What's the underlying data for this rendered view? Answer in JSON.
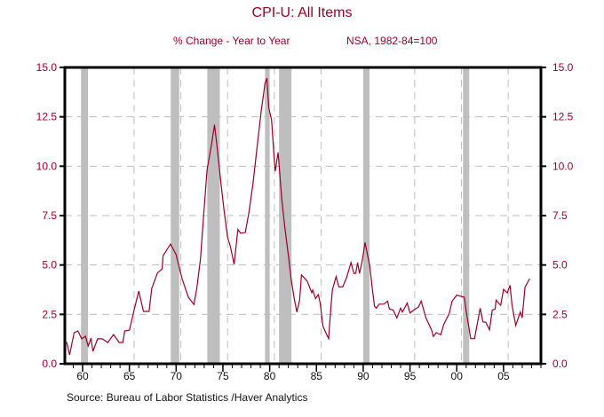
{
  "colors": {
    "accent": "#990026",
    "grid": "#bdbdbd",
    "recession": "#bebebe",
    "axis": "#000000"
  },
  "chart_data": {
    "type": "line",
    "title": "CPI-U: All Items",
    "subtitle_left": "% Change - Year to Year",
    "subtitle_right": "NSA, 1982-84=100",
    "source": "Source:  Bureau of Labor Statistics /Haver Analytics",
    "xlim": [
      1958.6,
      2009.5
    ],
    "ylim": [
      0,
      15
    ],
    "grid": true,
    "y_ticks": [
      "0.0",
      "2.5",
      "5.0",
      "7.5",
      "10.0",
      "12.5",
      "15.0"
    ],
    "x_tick_labels": [
      "60",
      "65",
      "70",
      "75",
      "80",
      "85",
      "90",
      "95",
      "00",
      "05"
    ],
    "x_tick_years": [
      1960,
      1965,
      1970,
      1975,
      1980,
      1985,
      1990,
      1995,
      2000,
      2005
    ],
    "recessions": [
      [
        1960.33,
        1961.08
      ],
      [
        1969.92,
        1970.83
      ],
      [
        1973.83,
        1975.17
      ],
      [
        1980.0,
        1980.5
      ],
      [
        1981.5,
        1982.83
      ],
      [
        1990.5,
        1991.17
      ],
      [
        2001.17,
        2001.83
      ]
    ],
    "series": [
      {
        "x": [
          1958.8,
          1959.1,
          1959.6,
          1960.0,
          1960.4,
          1960.8,
          1961.1,
          1961.4,
          1961.6,
          1962.1,
          1962.6,
          1963.2,
          1963.8,
          1964.4,
          1964.8,
          1965.0,
          1965.5,
          1966.0,
          1966.5,
          1967.0,
          1967.6,
          1967.9,
          1968.5,
          1969.0,
          1969.1,
          1969.9,
          1970.5,
          1971.1,
          1971.8,
          1972.4,
          1972.7,
          1973.1,
          1973.4,
          1973.8,
          1974.3,
          1974.6,
          1974.9,
          1975.3,
          1975.6,
          1976.0,
          1976.3,
          1976.7,
          1977.1,
          1977.4,
          1977.9,
          1978.3,
          1978.7,
          1979.2,
          1979.6,
          1980.0,
          1980.2,
          1980.4,
          1980.7,
          1981.0,
          1981.1,
          1981.4,
          1981.8,
          1982.1,
          1982.5,
          1982.8,
          1983.1,
          1983.4,
          1983.7,
          1983.9,
          1984.5,
          1985.0,
          1985.1,
          1985.4,
          1985.7,
          1985.9,
          1986.2,
          1986.5,
          1986.8,
          1986.9,
          1987.1,
          1987.2,
          1987.6,
          1987.9,
          1988.3,
          1988.7,
          1989.2,
          1989.5,
          1989.7,
          1989.9,
          1990.1,
          1990.4,
          1990.7,
          1991.2,
          1991.5,
          1991.7,
          1991.9,
          1992.2,
          1992.7,
          1993.1,
          1993.3,
          1993.7,
          1994.1,
          1994.5,
          1994.7,
          1995.2,
          1995.5,
          1995.9,
          1996.4,
          1996.7,
          1997.2,
          1997.8,
          1998.0,
          1998.3,
          1998.8,
          1999.1,
          1999.7,
          2000.0,
          2000.5,
          2001.3,
          2001.6,
          2002.0,
          2002.4,
          2003.0,
          2003.3,
          2003.6,
          2004.0,
          2004.3,
          2004.6,
          2004.7,
          2005.2,
          2005.5,
          2005.9,
          2006.2,
          2006.4,
          2006.8,
          2007.3,
          2007.5,
          2007.8,
          2008.3
        ],
        "values": [
          1.1,
          0.45,
          1.57,
          1.66,
          1.26,
          1.39,
          0.9,
          1.3,
          0.63,
          1.26,
          1.26,
          1.08,
          1.48,
          1.08,
          1.08,
          1.66,
          1.7,
          2.7,
          3.68,
          2.65,
          2.65,
          3.82,
          4.6,
          4.8,
          5.47,
          6.06,
          5.52,
          4.36,
          3.37,
          3.0,
          3.8,
          5.3,
          7.3,
          9.8,
          11.15,
          12.1,
          10.9,
          9.07,
          7.86,
          6.4,
          5.93,
          5.03,
          6.8,
          6.6,
          6.65,
          7.7,
          9.07,
          11.15,
          12.8,
          14.2,
          14.45,
          12.95,
          12.35,
          10.25,
          9.75,
          10.7,
          8.3,
          6.96,
          5.48,
          4.27,
          3.37,
          2.62,
          3.2,
          4.5,
          4.19,
          3.6,
          3.73,
          3.3,
          3.5,
          3.07,
          1.89,
          1.57,
          1.27,
          1.95,
          3.14,
          3.74,
          4.41,
          3.89,
          3.89,
          4.34,
          5.12,
          4.57,
          4.58,
          5.12,
          4.57,
          5.24,
          6.14,
          4.94,
          3.67,
          2.92,
          2.81,
          3.02,
          3.02,
          3.17,
          2.77,
          2.72,
          2.32,
          2.81,
          2.62,
          3.07,
          2.57,
          2.72,
          2.87,
          3.17,
          2.32,
          1.72,
          1.38,
          1.57,
          1.47,
          1.98,
          2.55,
          3.17,
          3.47,
          3.37,
          2.39,
          1.27,
          1.27,
          2.81,
          2.12,
          2.1,
          1.72,
          2.72,
          2.77,
          3.22,
          2.96,
          3.77,
          3.59,
          3.97,
          2.99,
          1.94,
          2.62,
          2.32,
          3.89,
          4.31
        ]
      }
    ]
  }
}
